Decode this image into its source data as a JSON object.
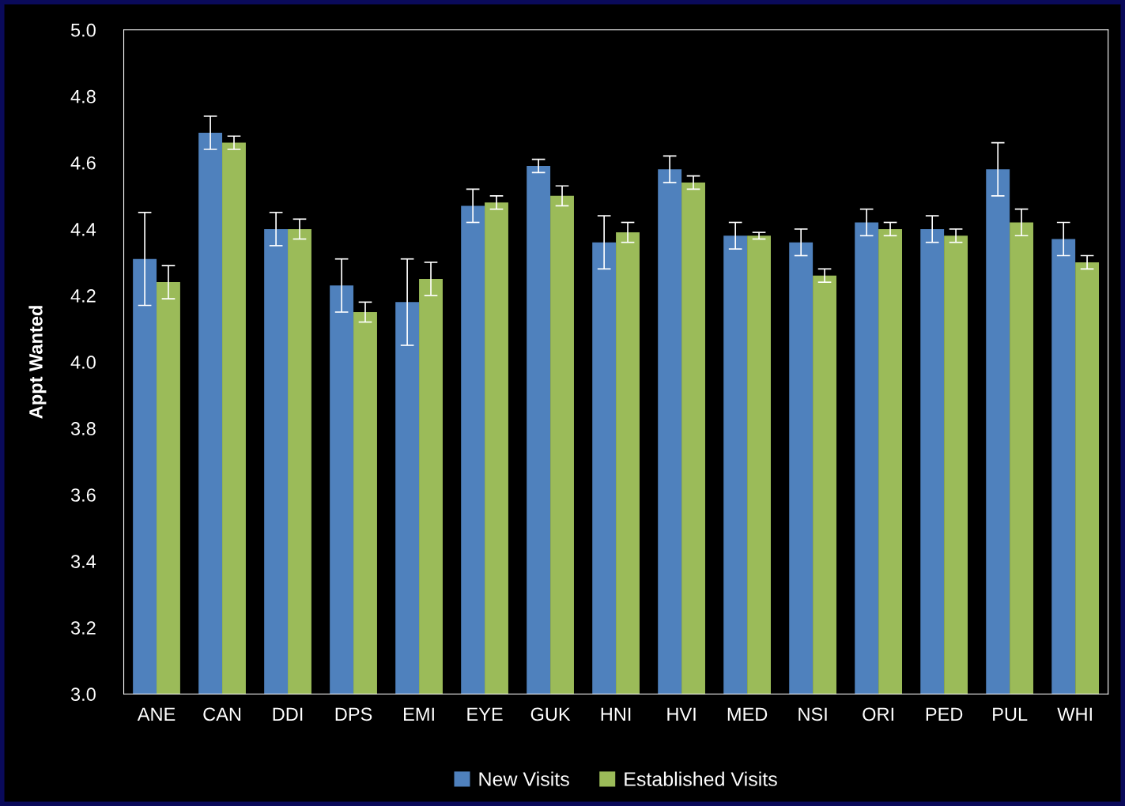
{
  "chart_data": {
    "type": "bar",
    "ylabel": "Appt Wanted",
    "categories": [
      "ANE",
      "CAN",
      "DDI",
      "DPS",
      "EMI",
      "EYE",
      "GUK",
      "HNI",
      "HVI",
      "MED",
      "NSI",
      "ORI",
      "PED",
      "PUL",
      "WHI"
    ],
    "series": [
      {
        "name": "New Visits",
        "color": "#4f81bd",
        "values": [
          4.31,
          4.69,
          4.4,
          4.23,
          4.18,
          4.47,
          4.59,
          4.36,
          4.58,
          4.38,
          4.36,
          4.42,
          4.4,
          4.58,
          4.37
        ],
        "errors": [
          0.14,
          0.05,
          0.05,
          0.08,
          0.13,
          0.05,
          0.02,
          0.08,
          0.04,
          0.04,
          0.04,
          0.04,
          0.04,
          0.08,
          0.05
        ]
      },
      {
        "name": "Established Visits",
        "color": "#9bbb59",
        "values": [
          4.24,
          4.66,
          4.4,
          4.15,
          4.25,
          4.48,
          4.5,
          4.39,
          4.54,
          4.38,
          4.26,
          4.4,
          4.38,
          4.42,
          4.3
        ],
        "errors": [
          0.05,
          0.02,
          0.03,
          0.03,
          0.05,
          0.02,
          0.03,
          0.03,
          0.02,
          0.01,
          0.02,
          0.02,
          0.02,
          0.04,
          0.02
        ]
      }
    ],
    "ylim": [
      3.0,
      5.0
    ],
    "yticks": [
      {
        "value": 3.0,
        "label": "3.0"
      },
      {
        "value": 3.2,
        "label": "3.2"
      },
      {
        "value": 3.4,
        "label": "3.4"
      },
      {
        "value": 3.6,
        "label": "3.6"
      },
      {
        "value": 3.8,
        "label": "3.8"
      },
      {
        "value": 4.0,
        "label": "4.0"
      },
      {
        "value": 4.2,
        "label": "4.2"
      },
      {
        "value": 4.4,
        "label": "4.4"
      },
      {
        "value": 4.6,
        "label": "4.6"
      },
      {
        "value": 4.8,
        "label": "4.8"
      },
      {
        "value": 5.0,
        "label": "5.0"
      }
    ],
    "grid": false,
    "legend": "bottom"
  }
}
